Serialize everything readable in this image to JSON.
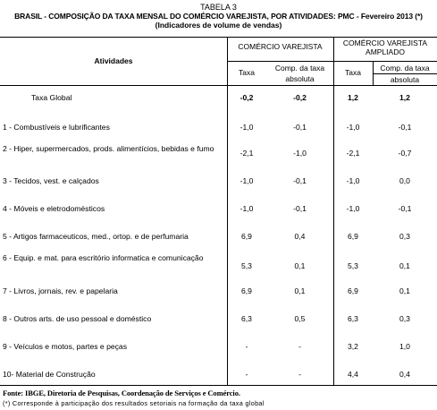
{
  "table": {
    "number": "TABELA 3",
    "title": "BRASIL - COMPOSIÇÃO DA TAXA MENSAL DO COMÉRCIO VAREJISTA, POR ATIVIDADES: PMC - Fevereiro 2013 (*)",
    "subtitle": "(Indicadores de volume de vendas)",
    "headers": {
      "atividades": "Atividades",
      "group1": "COMÉRCIO VAREJISTA",
      "group2": "COMÉRCIO VAREJISTA AMPLIADO",
      "taxa": "Taxa",
      "comp_line1": "Comp. da taxa",
      "comp_line2": "absoluta"
    },
    "total": {
      "label": "Taxa Global",
      "values": [
        "-0,2",
        "-0,2",
        "1,2",
        "1,2"
      ]
    },
    "rows": [
      {
        "label": "1 - Combustíveis e lubrificantes",
        "values": [
          "-1,0",
          "-0,1",
          "-1,0",
          "-0,1"
        ]
      },
      {
        "label": "2 - Hiper, supermercados, prods. alimentícios, bebidas e fumo",
        "values": [
          "-2,1",
          "-1,0",
          "-2,1",
          "-0,7"
        ]
      },
      {
        "label": "3 - Tecidos, vest. e calçados",
        "values": [
          "-1,0",
          "-0,1",
          "-1,0",
          "0,0"
        ]
      },
      {
        "label": "4 - Móveis e eletrodomésticos",
        "values": [
          "-1,0",
          "-0,1",
          "-1,0",
          "-0,1"
        ]
      },
      {
        "label": "5 - Artigos farmaceuticos, med., ortop. e de perfumaria",
        "values": [
          "6,9",
          "0,4",
          "6,9",
          "0,3"
        ]
      },
      {
        "label": "6 - Equip. e mat. para escritório informatica e comunicação",
        "values": [
          "5,3",
          "0,1",
          "5,3",
          "0,1"
        ]
      },
      {
        "label": "7 - Livros, jornais, rev. e papelaria",
        "values": [
          "6,9",
          "0,1",
          "6,9",
          "0,1"
        ]
      },
      {
        "label": "8 - Outros arts. de uso pessoal e doméstico",
        "values": [
          "6,3",
          "0,5",
          "6,3",
          "0,3"
        ]
      },
      {
        "label": "9 - Veículos e motos, partes e peças",
        "values": [
          "-",
          "-",
          "3,2",
          "1,0"
        ]
      },
      {
        "label": "10- Material de Construção",
        "values": [
          "-",
          "-",
          "4,4",
          "0,4"
        ]
      }
    ],
    "footer_source": "Fonte: IBGE, Diretoria de Pesquisas, Coordenação de Serviços e Comércio.",
    "footer_note": "(*) Corresponde à participação dos resultados setoriais na formação da taxa global"
  }
}
